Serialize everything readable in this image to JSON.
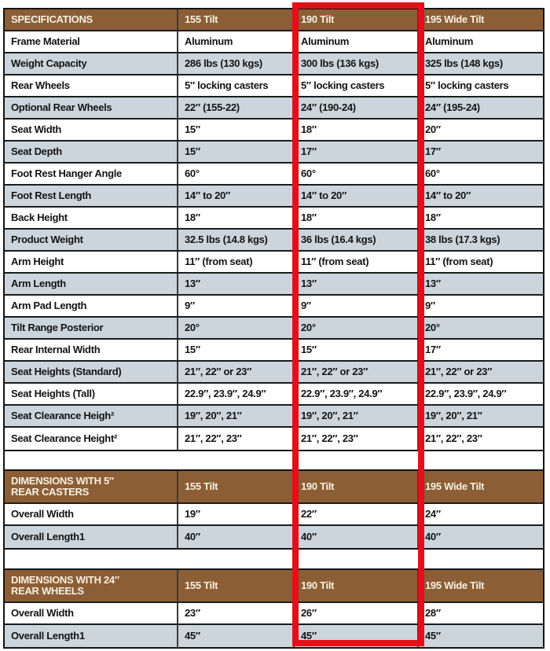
{
  "colors": {
    "header_brown": "#8c5e36",
    "header_text": "#f6f0e2",
    "row_alt_blue_gray": "#ccd5dc",
    "row_white": "#ffffff",
    "body_text": "#141414",
    "highlight_red": "#e30f19"
  },
  "highlighted_column": "190 Tilt",
  "tables": [
    {
      "header": [
        "SPECIFICATIONS",
        "155 Tilt",
        "190 Tilt",
        "195 Wide Tilt"
      ],
      "rows": [
        [
          "Frame Material",
          "Aluminum",
          "Aluminum",
          "Aluminum"
        ],
        [
          "Weight Capacity",
          "286 lbs (130 kgs)",
          "300 lbs (136 kgs)",
          "325 lbs (148 kgs)"
        ],
        [
          "Rear Wheels",
          "5″ locking casters",
          "5″ locking casters",
          "5″ locking casters"
        ],
        [
          "Optional Rear Wheels",
          "22″ (155-22)",
          "24″ (190-24)",
          "24″ (195-24)"
        ],
        [
          "Seat Width",
          "15″",
          "18″",
          "20″"
        ],
        [
          "Seat Depth",
          "15″",
          "17″",
          "17″"
        ],
        [
          "Foot Rest Hanger Angle",
          "60°",
          "60°",
          "60°"
        ],
        [
          "Foot Rest Length",
          "14″ to 20″",
          "14″ to 20″",
          "14″ to 20″"
        ],
        [
          "Back Height",
          "18″",
          "18″",
          "18″"
        ],
        [
          "Product Weight",
          "32.5 lbs (14.8 kgs)",
          "36 lbs (16.4 kgs)",
          "38 lbs (17.3 kgs)"
        ],
        [
          "Arm Height",
          "11″ (from seat)",
          "11″ (from seat)",
          "11″ (from seat)"
        ],
        [
          "Arm Length",
          "13″",
          "13″",
          "13″"
        ],
        [
          "Arm Pad Length",
          "9″",
          "9″",
          "9″"
        ],
        [
          "Tilt Range Posterior",
          "20°",
          "20°",
          "20°"
        ],
        [
          "Rear Internal Width",
          "15″",
          "15″",
          "17″"
        ],
        [
          "Seat Heights (Standard)",
          "21″, 22″ or 23″",
          "21″, 22″ or 23″",
          "21″, 22″ or 23″"
        ],
        [
          "Seat Heights (Tall)",
          "22.9″, 23.9″, 24.9″",
          "22.9″, 23.9″, 24.9″",
          "22.9″, 23.9″, 24.9″"
        ],
        [
          "Seat Clearance Heigh²",
          "19″, 20″, 21″",
          "19″, 20″, 21″",
          "19″, 20″, 21″"
        ],
        [
          "Seat Clearance Height²",
          "21″, 22″, 23″",
          "21″, 22″, 23″",
          "21″, 22″, 23″"
        ]
      ]
    },
    {
      "header": [
        "DIMENSIONS WITH 5″\nREAR CASTERS",
        "155 Tilt",
        "190 Tilt",
        "195 Wide Tilt"
      ],
      "rows": [
        [
          "Overall Width",
          "19″",
          "22″",
          "24″"
        ],
        [
          "Overall Length1",
          "40″",
          "40″",
          "40″"
        ]
      ]
    },
    {
      "header": [
        "DIMENSIONS WITH 24″\nREAR WHEELS",
        "155 Tilt",
        "190 Tilt",
        "195 Wide Tilt"
      ],
      "rows": [
        [
          "Overall Width",
          "23″",
          "26″",
          "28″"
        ],
        [
          "Overall Length1",
          "45″",
          "45″",
          "45″"
        ]
      ]
    }
  ]
}
